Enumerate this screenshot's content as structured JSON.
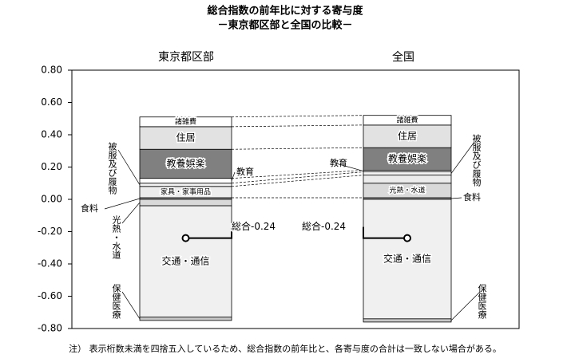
{
  "chart_data": {
    "type": "stacked_bar",
    "title": "総合指数の前年比に対する寄与度",
    "subtitle": "－東京都区部と全国の比較－",
    "categories": [
      "東京都区部",
      "全国"
    ],
    "series": [
      {
        "name": "食料",
        "color": "#9a9a9a",
        "values": [
          0.01,
          0.01
        ]
      },
      {
        "name": "光熱・水道",
        "color": "#d9d9d9",
        "values": [
          -0.04,
          0.09
        ]
      },
      {
        "name": "家具・家事用品",
        "color": "#ececec",
        "values": [
          0.07,
          0.05
        ]
      },
      {
        "name": "被服及び履物",
        "color": "#f4f4f4",
        "values": [
          0.02,
          0.02
        ]
      },
      {
        "name": "教育",
        "color": "#ffffff",
        "values": [
          0.03,
          0.01
        ]
      },
      {
        "name": "教養娯楽",
        "color": "#808080",
        "values": [
          0.18,
          0.14
        ]
      },
      {
        "name": "住居",
        "color": "#e2e2e2",
        "values": [
          0.14,
          0.14
        ]
      },
      {
        "name": "諸雑費",
        "color": "#ffffff",
        "values": [
          0.06,
          0.06
        ]
      },
      {
        "name": "交通・通信",
        "color": "#f0f0f0",
        "values": [
          -0.69,
          -0.74
        ]
      },
      {
        "name": "保健医療",
        "color": "#c8c8c8",
        "values": [
          -0.02,
          -0.02
        ]
      }
    ],
    "totals": [
      -0.24,
      -0.24
    ],
    "total_labels": [
      "総合-0.24",
      "総合-0.24"
    ],
    "ylim": [
      -0.8,
      0.8
    ],
    "yticks": [
      {
        "value": 0.8,
        "label": "0.80"
      },
      {
        "value": 0.6,
        "label": "0.60"
      },
      {
        "value": 0.4,
        "label": "0.40"
      },
      {
        "value": 0.2,
        "label": "0.20"
      },
      {
        "value": 0,
        "label": "0.00"
      },
      {
        "value": -0.2,
        "label": "-0.20"
      },
      {
        "value": -0.4,
        "label": "-0.40"
      },
      {
        "value": -0.6,
        "label": "-0.60"
      },
      {
        "value": -0.8,
        "label": "-0.80"
      }
    ],
    "note": "注） 表示桁数未満を四捨五入しているため、総合指数の前年比と、各寄与度の合計は一致しない場合がある。"
  }
}
